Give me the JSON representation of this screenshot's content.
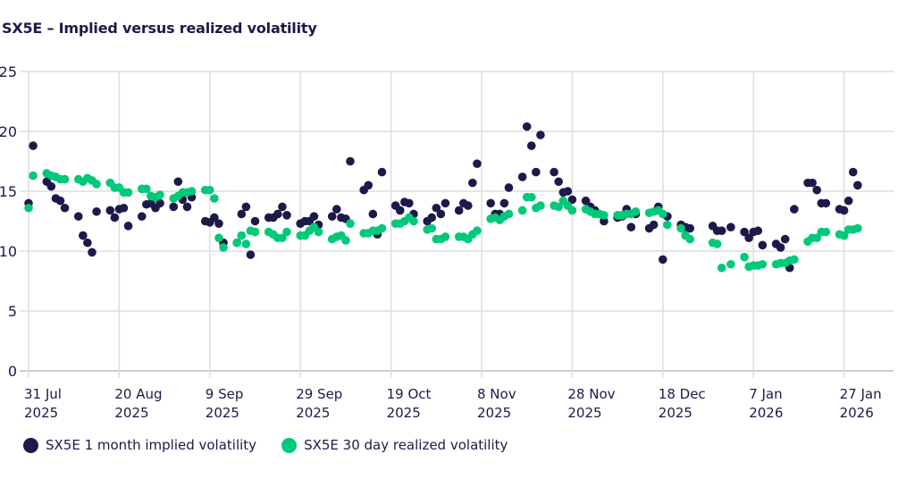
{
  "chart_data": {
    "type": "scatter",
    "title": "SX5E – Implied versus realized volatility",
    "xlabel": "",
    "ylabel": "",
    "ylim": [
      0,
      25
    ],
    "yticks": [
      "0",
      "5",
      "10",
      "15",
      "20",
      "25"
    ],
    "xlim": [
      "2025-07-30",
      "2026-02-19"
    ],
    "xticks": [
      {
        "date": "2025-07-31",
        "line1": "31 Jul",
        "line2": "2025"
      },
      {
        "date": "2025-08-20",
        "line1": "20 Aug",
        "line2": "2025"
      },
      {
        "date": "2025-09-09",
        "line1": "9 Sep",
        "line2": "2025"
      },
      {
        "date": "2025-09-29",
        "line1": "29 Sep",
        "line2": "2025"
      },
      {
        "date": "2025-10-19",
        "line1": "19 Oct",
        "line2": "2025"
      },
      {
        "date": "2025-11-08",
        "line1": "8 Nov",
        "line2": "2025"
      },
      {
        "date": "2025-11-28",
        "line1": "28 Nov",
        "line2": "2025"
      },
      {
        "date": "2025-12-18",
        "line1": "18 Dec",
        "line2": "2025"
      },
      {
        "date": "2026-01-07",
        "line1": "7 Jan",
        "line2": "2026"
      },
      {
        "date": "2026-01-27",
        "line1": "27 Jan",
        "line2": "2026"
      }
    ],
    "grid": true,
    "legend_position": "bottom-left",
    "series": [
      {
        "name": "SX5E 1 month implied volatility",
        "color": "#1c1a4a",
        "points": [
          [
            "2025-07-31",
            14.0
          ],
          [
            "2025-08-01",
            18.8
          ],
          [
            "2025-08-04",
            15.8
          ],
          [
            "2025-08-05",
            15.4
          ],
          [
            "2025-08-06",
            14.4
          ],
          [
            "2025-08-07",
            14.2
          ],
          [
            "2025-08-08",
            13.6
          ],
          [
            "2025-08-11",
            12.9
          ],
          [
            "2025-08-12",
            11.3
          ],
          [
            "2025-08-13",
            10.7
          ],
          [
            "2025-08-14",
            9.9
          ],
          [
            "2025-08-15",
            13.3
          ],
          [
            "2025-08-18",
            13.4
          ],
          [
            "2025-08-19",
            12.8
          ],
          [
            "2025-08-20",
            13.5
          ],
          [
            "2025-08-21",
            13.6
          ],
          [
            "2025-08-22",
            12.1
          ],
          [
            "2025-08-25",
            12.9
          ],
          [
            "2025-08-26",
            13.9
          ],
          [
            "2025-08-27",
            14.0
          ],
          [
            "2025-08-28",
            13.6
          ],
          [
            "2025-08-29",
            14.0
          ],
          [
            "2025-09-01",
            13.7
          ],
          [
            "2025-09-02",
            15.8
          ],
          [
            "2025-09-03",
            14.3
          ],
          [
            "2025-09-04",
            13.7
          ],
          [
            "2025-09-05",
            14.5
          ],
          [
            "2025-09-08",
            12.5
          ],
          [
            "2025-09-09",
            12.4
          ],
          [
            "2025-09-10",
            12.8
          ],
          [
            "2025-09-11",
            12.3
          ],
          [
            "2025-09-12",
            10.7
          ],
          [
            "2025-09-15",
            10.7
          ],
          [
            "2025-09-16",
            13.1
          ],
          [
            "2025-09-17",
            13.7
          ],
          [
            "2025-09-18",
            9.7
          ],
          [
            "2025-09-19",
            12.5
          ],
          [
            "2025-09-22",
            12.8
          ],
          [
            "2025-09-23",
            12.8
          ],
          [
            "2025-09-24",
            13.1
          ],
          [
            "2025-09-25",
            13.7
          ],
          [
            "2025-09-26",
            13.0
          ],
          [
            "2025-09-29",
            12.3
          ],
          [
            "2025-09-30",
            12.5
          ],
          [
            "2025-10-01",
            12.5
          ],
          [
            "2025-10-02",
            12.9
          ],
          [
            "2025-10-03",
            12.2
          ],
          [
            "2025-10-06",
            12.9
          ],
          [
            "2025-10-07",
            13.5
          ],
          [
            "2025-10-08",
            12.8
          ],
          [
            "2025-10-09",
            12.7
          ],
          [
            "2025-10-10",
            17.5
          ],
          [
            "2025-10-13",
            15.1
          ],
          [
            "2025-10-14",
            15.5
          ],
          [
            "2025-10-15",
            13.1
          ],
          [
            "2025-10-16",
            11.4
          ],
          [
            "2025-10-17",
            16.6
          ],
          [
            "2025-10-20",
            13.8
          ],
          [
            "2025-10-21",
            13.4
          ],
          [
            "2025-10-22",
            14.1
          ],
          [
            "2025-10-23",
            14.0
          ],
          [
            "2025-10-24",
            13.1
          ],
          [
            "2025-10-27",
            12.5
          ],
          [
            "2025-10-28",
            12.8
          ],
          [
            "2025-10-29",
            13.6
          ],
          [
            "2025-10-30",
            13.1
          ],
          [
            "2025-10-31",
            14.0
          ],
          [
            "2025-11-03",
            13.4
          ],
          [
            "2025-11-04",
            14.0
          ],
          [
            "2025-11-05",
            13.8
          ],
          [
            "2025-11-06",
            15.7
          ],
          [
            "2025-11-07",
            17.3
          ],
          [
            "2025-11-10",
            14.0
          ],
          [
            "2025-11-11",
            13.1
          ],
          [
            "2025-11-12",
            13.1
          ],
          [
            "2025-11-13",
            14.0
          ],
          [
            "2025-11-14",
            15.3
          ],
          [
            "2025-11-17",
            16.2
          ],
          [
            "2025-11-18",
            20.4
          ],
          [
            "2025-11-19",
            18.8
          ],
          [
            "2025-11-20",
            16.6
          ],
          [
            "2025-11-21",
            19.7
          ],
          [
            "2025-11-24",
            16.6
          ],
          [
            "2025-11-25",
            15.8
          ],
          [
            "2025-11-26",
            14.9
          ],
          [
            "2025-11-27",
            15.0
          ],
          [
            "2025-11-28",
            14.3
          ],
          [
            "2025-12-01",
            14.2
          ],
          [
            "2025-12-02",
            13.7
          ],
          [
            "2025-12-03",
            13.4
          ],
          [
            "2025-12-04",
            13.1
          ],
          [
            "2025-12-05",
            12.5
          ],
          [
            "2025-12-08",
            12.8
          ],
          [
            "2025-12-09",
            12.9
          ],
          [
            "2025-12-10",
            13.5
          ],
          [
            "2025-12-11",
            12.0
          ],
          [
            "2025-12-12",
            13.1
          ],
          [
            "2025-12-15",
            11.9
          ],
          [
            "2025-12-16",
            12.2
          ],
          [
            "2025-12-17",
            13.7
          ],
          [
            "2025-12-18",
            9.3
          ],
          [
            "2025-12-19",
            12.9
          ],
          [
            "2025-12-22",
            12.2
          ],
          [
            "2025-12-23",
            12.0
          ],
          [
            "2025-12-24",
            11.9
          ],
          [
            "2025-12-29",
            12.1
          ],
          [
            "2025-12-30",
            11.7
          ],
          [
            "2025-12-31",
            11.7
          ],
          [
            "2026-01-02",
            12.0
          ],
          [
            "2026-01-05",
            11.6
          ],
          [
            "2026-01-06",
            11.1
          ],
          [
            "2026-01-07",
            11.6
          ],
          [
            "2026-01-08",
            11.7
          ],
          [
            "2026-01-09",
            10.5
          ],
          [
            "2026-01-12",
            10.6
          ],
          [
            "2026-01-13",
            10.3
          ],
          [
            "2026-01-14",
            11.0
          ],
          [
            "2026-01-15",
            8.6
          ],
          [
            "2026-01-16",
            13.5
          ],
          [
            "2026-01-19",
            15.7
          ],
          [
            "2026-01-20",
            15.7
          ],
          [
            "2026-01-21",
            15.1
          ],
          [
            "2026-01-22",
            14.0
          ],
          [
            "2026-01-23",
            14.0
          ],
          [
            "2026-01-26",
            13.5
          ],
          [
            "2026-01-27",
            13.4
          ],
          [
            "2026-01-28",
            14.2
          ],
          [
            "2026-01-29",
            16.6
          ],
          [
            "2026-01-30",
            15.5
          ]
        ]
      },
      {
        "name": "SX5E 30 day realized volatility",
        "color": "#00c97a",
        "points": [
          [
            "2025-07-31",
            13.6
          ],
          [
            "2025-08-01",
            16.3
          ],
          [
            "2025-08-04",
            16.5
          ],
          [
            "2025-08-05",
            16.3
          ],
          [
            "2025-08-06",
            16.2
          ],
          [
            "2025-08-07",
            16.0
          ],
          [
            "2025-08-08",
            16.0
          ],
          [
            "2025-08-11",
            16.0
          ],
          [
            "2025-08-12",
            15.8
          ],
          [
            "2025-08-13",
            16.1
          ],
          [
            "2025-08-14",
            15.9
          ],
          [
            "2025-08-15",
            15.6
          ],
          [
            "2025-08-18",
            15.7
          ],
          [
            "2025-08-19",
            15.3
          ],
          [
            "2025-08-20",
            15.3
          ],
          [
            "2025-08-21",
            14.9
          ],
          [
            "2025-08-22",
            14.9
          ],
          [
            "2025-08-25",
            15.2
          ],
          [
            "2025-08-26",
            15.2
          ],
          [
            "2025-08-27",
            14.6
          ],
          [
            "2025-08-28",
            14.5
          ],
          [
            "2025-08-29",
            14.7
          ],
          [
            "2025-09-01",
            14.4
          ],
          [
            "2025-09-02",
            14.6
          ],
          [
            "2025-09-03",
            14.9
          ],
          [
            "2025-09-04",
            14.9
          ],
          [
            "2025-09-05",
            15.0
          ],
          [
            "2025-09-08",
            15.1
          ],
          [
            "2025-09-09",
            15.1
          ],
          [
            "2025-09-10",
            14.4
          ],
          [
            "2025-09-11",
            11.1
          ],
          [
            "2025-09-12",
            10.3
          ],
          [
            "2025-09-15",
            10.7
          ],
          [
            "2025-09-16",
            11.3
          ],
          [
            "2025-09-17",
            10.6
          ],
          [
            "2025-09-18",
            11.7
          ],
          [
            "2025-09-19",
            11.6
          ],
          [
            "2025-09-22",
            11.6
          ],
          [
            "2025-09-23",
            11.4
          ],
          [
            "2025-09-24",
            11.1
          ],
          [
            "2025-09-25",
            11.1
          ],
          [
            "2025-09-26",
            11.6
          ],
          [
            "2025-09-29",
            11.3
          ],
          [
            "2025-09-30",
            11.3
          ],
          [
            "2025-10-01",
            11.7
          ],
          [
            "2025-10-02",
            12.0
          ],
          [
            "2025-10-03",
            11.6
          ],
          [
            "2025-10-06",
            11.0
          ],
          [
            "2025-10-07",
            11.2
          ],
          [
            "2025-10-08",
            11.3
          ],
          [
            "2025-10-09",
            10.9
          ],
          [
            "2025-10-10",
            12.3
          ],
          [
            "2025-10-13",
            11.5
          ],
          [
            "2025-10-14",
            11.5
          ],
          [
            "2025-10-15",
            11.7
          ],
          [
            "2025-10-16",
            11.7
          ],
          [
            "2025-10-17",
            11.9
          ],
          [
            "2025-10-20",
            12.3
          ],
          [
            "2025-10-21",
            12.3
          ],
          [
            "2025-10-22",
            12.5
          ],
          [
            "2025-10-23",
            12.8
          ],
          [
            "2025-10-24",
            12.5
          ],
          [
            "2025-10-27",
            11.8
          ],
          [
            "2025-10-28",
            11.9
          ],
          [
            "2025-10-29",
            11.0
          ],
          [
            "2025-10-30",
            11.0
          ],
          [
            "2025-10-31",
            11.2
          ],
          [
            "2025-11-03",
            11.2
          ],
          [
            "2025-11-04",
            11.2
          ],
          [
            "2025-11-05",
            11.0
          ],
          [
            "2025-11-06",
            11.4
          ],
          [
            "2025-11-07",
            11.7
          ],
          [
            "2025-11-10",
            12.7
          ],
          [
            "2025-11-11",
            12.8
          ],
          [
            "2025-11-12",
            12.6
          ],
          [
            "2025-11-13",
            12.9
          ],
          [
            "2025-11-14",
            13.1
          ],
          [
            "2025-11-17",
            13.4
          ],
          [
            "2025-11-18",
            14.5
          ],
          [
            "2025-11-19",
            14.5
          ],
          [
            "2025-11-20",
            13.6
          ],
          [
            "2025-11-21",
            13.8
          ],
          [
            "2025-11-24",
            13.8
          ],
          [
            "2025-11-25",
            13.7
          ],
          [
            "2025-11-26",
            14.2
          ],
          [
            "2025-11-27",
            13.8
          ],
          [
            "2025-11-28",
            13.4
          ],
          [
            "2025-12-01",
            13.5
          ],
          [
            "2025-12-02",
            13.3
          ],
          [
            "2025-12-03",
            13.1
          ],
          [
            "2025-12-04",
            13.1
          ],
          [
            "2025-12-05",
            13.0
          ],
          [
            "2025-12-08",
            13.0
          ],
          [
            "2025-12-09",
            13.0
          ],
          [
            "2025-12-10",
            13.1
          ],
          [
            "2025-12-11",
            13.1
          ],
          [
            "2025-12-12",
            13.3
          ],
          [
            "2025-12-15",
            13.2
          ],
          [
            "2025-12-16",
            13.3
          ],
          [
            "2025-12-17",
            13.4
          ],
          [
            "2025-12-18",
            13.1
          ],
          [
            "2025-12-19",
            12.2
          ],
          [
            "2025-12-22",
            11.9
          ],
          [
            "2025-12-23",
            11.3
          ],
          [
            "2025-12-24",
            11.0
          ],
          [
            "2025-12-29",
            10.7
          ],
          [
            "2025-12-30",
            10.6
          ],
          [
            "2025-12-31",
            8.6
          ],
          [
            "2026-01-02",
            8.9
          ],
          [
            "2026-01-05",
            9.5
          ],
          [
            "2026-01-06",
            8.7
          ],
          [
            "2026-01-07",
            8.8
          ],
          [
            "2026-01-08",
            8.8
          ],
          [
            "2026-01-09",
            8.9
          ],
          [
            "2026-01-12",
            8.9
          ],
          [
            "2026-01-13",
            9.0
          ],
          [
            "2026-01-14",
            9.0
          ],
          [
            "2026-01-15",
            9.2
          ],
          [
            "2026-01-16",
            9.3
          ],
          [
            "2026-01-19",
            10.8
          ],
          [
            "2026-01-20",
            11.1
          ],
          [
            "2026-01-21",
            11.1
          ],
          [
            "2026-01-22",
            11.6
          ],
          [
            "2026-01-23",
            11.6
          ],
          [
            "2026-01-26",
            11.4
          ],
          [
            "2026-01-27",
            11.3
          ],
          [
            "2026-01-28",
            11.8
          ],
          [
            "2026-01-29",
            11.8
          ],
          [
            "2026-01-30",
            11.9
          ]
        ]
      }
    ]
  }
}
